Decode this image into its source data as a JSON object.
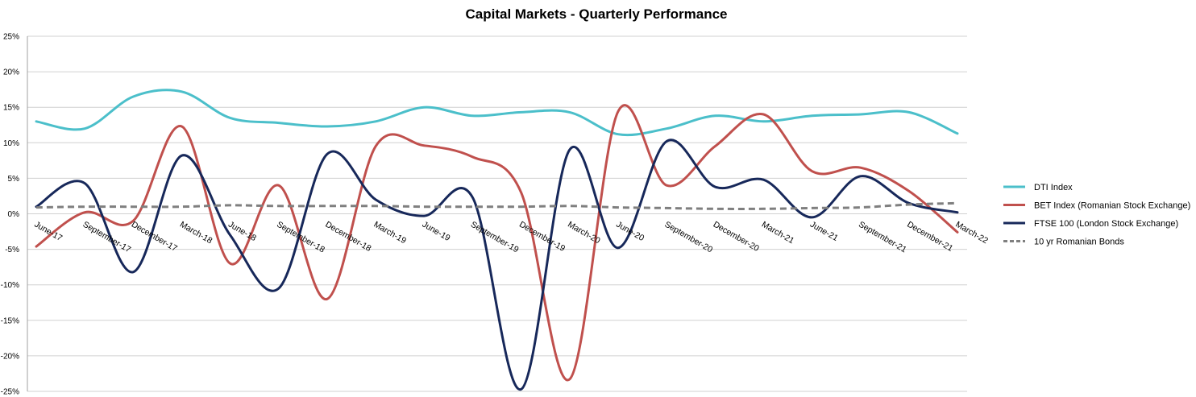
{
  "chart_data": {
    "type": "line",
    "title": "Capital Markets - Quarterly Performance",
    "xlabel": "",
    "ylabel": "",
    "ylim": [
      -25,
      25
    ],
    "y_ticks": [
      "25%",
      "20%",
      "15%",
      "10%",
      "5%",
      "0%",
      "-5%",
      "-10%",
      "-15%",
      "-20%",
      "-25%"
    ],
    "categories": [
      "June-17",
      "September-17",
      "December-17",
      "March-18",
      "June-18",
      "September-18",
      "December-18",
      "March-19",
      "June-19",
      "September-19",
      "December-19",
      "March-20",
      "June-20",
      "September-20",
      "December-20",
      "March-21",
      "June-21",
      "September-21",
      "December-21",
      "March-22"
    ],
    "grid": true,
    "legend_position": "right",
    "series": [
      {
        "name": "DTI  Index",
        "color": "#4bbfca",
        "dash": "solid",
        "values": [
          13.0,
          12.0,
          16.5,
          17.2,
          13.5,
          12.8,
          12.3,
          13.0,
          15.0,
          13.8,
          14.3,
          14.3,
          11.2,
          12.0,
          13.8,
          13.0,
          13.8,
          14.0,
          14.3,
          11.3
        ]
      },
      {
        "name": "BET Index (Romanian Stock Exchange)",
        "color": "#c0504d",
        "dash": "solid",
        "values": [
          -4.6,
          0.2,
          -1.0,
          12.3,
          -7.0,
          4.0,
          -12.0,
          9.5,
          9.6,
          8.0,
          3.0,
          -23.3,
          14.4,
          4.0,
          9.5,
          14.0,
          6.0,
          6.5,
          3.2,
          -2.6
        ]
      },
      {
        "name": "FTSE 100 (London Stock Exchange)",
        "color": "#17285a",
        "dash": "solid",
        "values": [
          1.0,
          4.3,
          -8.2,
          8.2,
          -3.0,
          -10.5,
          8.4,
          2.0,
          -0.3,
          2.3,
          -24.7,
          9.0,
          -4.8,
          10.2,
          3.8,
          4.8,
          -0.5,
          5.3,
          1.5,
          0.2
        ]
      },
      {
        "name": "10 yr Romanian Bonds",
        "color": "#7f7f7f",
        "dash": "dashed",
        "values": [
          0.9,
          1.0,
          1.0,
          1.0,
          1.2,
          1.1,
          1.1,
          1.1,
          1.0,
          1.0,
          1.0,
          1.1,
          0.9,
          0.8,
          0.7,
          0.7,
          0.8,
          0.9,
          1.3,
          1.5
        ]
      }
    ]
  }
}
